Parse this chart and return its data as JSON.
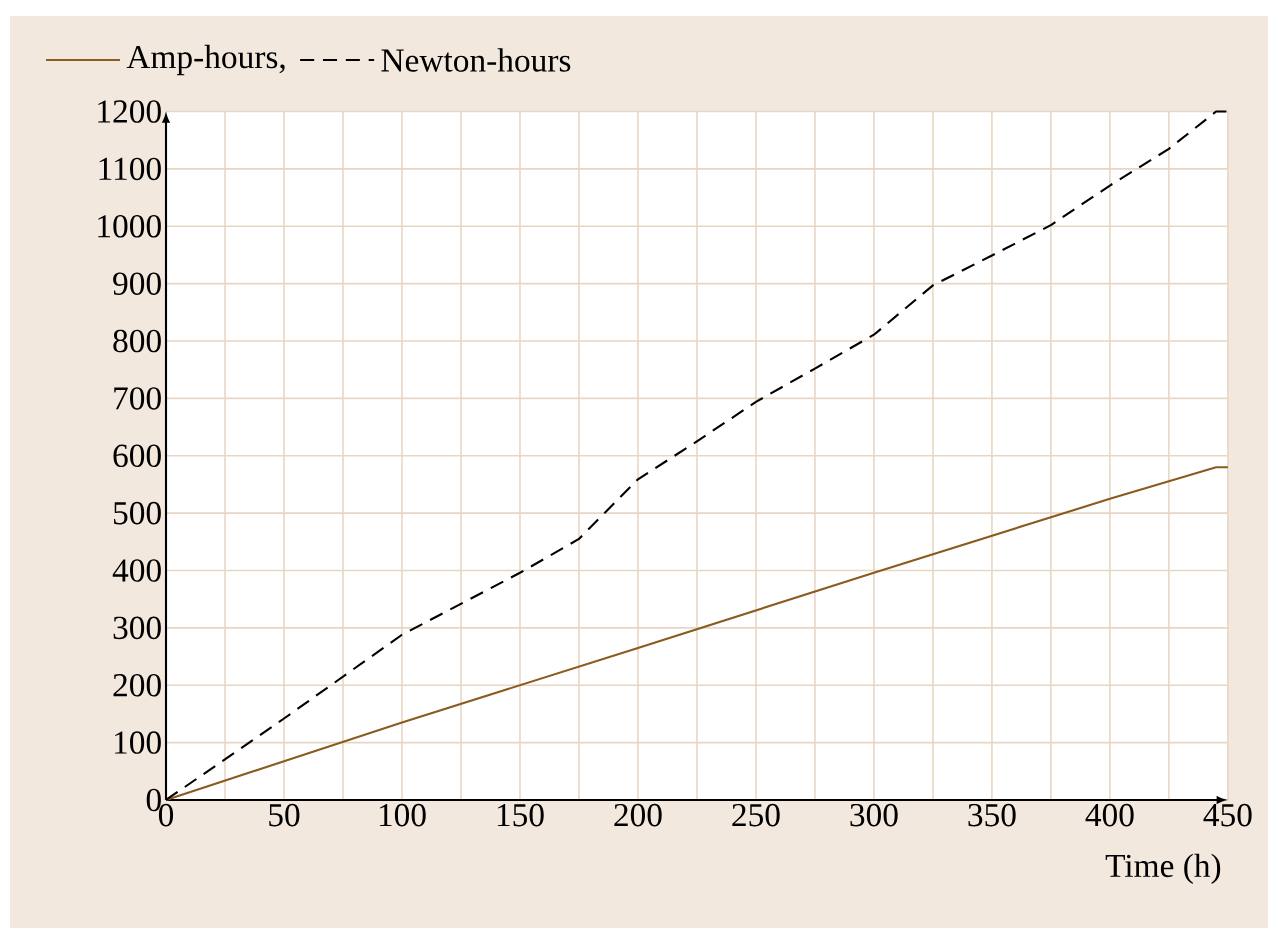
{
  "chart_data": {
    "type": "line",
    "xlabel": "Time (h)",
    "xlim": [
      0,
      450
    ],
    "ylim": [
      0,
      1200
    ],
    "xticks": [
      0,
      50,
      100,
      150,
      200,
      250,
      300,
      350,
      400,
      450
    ],
    "yticks": [
      0,
      100,
      200,
      300,
      400,
      500,
      600,
      700,
      800,
      900,
      1000,
      1100,
      1200
    ],
    "grid": true,
    "legend": "top left",
    "series": [
      {
        "name": "Amp-hours,",
        "color": "#8b5a1e",
        "line_style": "solid",
        "x": [
          0,
          100,
          200,
          300,
          400,
          445,
          450
        ],
        "values": [
          0,
          135,
          265,
          396,
          525,
          580,
          580
        ]
      },
      {
        "name": "Newton-hours",
        "color": "#000000",
        "line_style": "dashed",
        "x": [
          0,
          50,
          100,
          150,
          175,
          200,
          225,
          250,
          275,
          300,
          325,
          350,
          375,
          400,
          425,
          445,
          450
        ],
        "values": [
          0,
          142,
          288,
          396,
          455,
          559,
          625,
          694,
          752,
          811,
          897,
          949,
          1002,
          1071,
          1135,
          1200,
          1200
        ]
      }
    ]
  }
}
